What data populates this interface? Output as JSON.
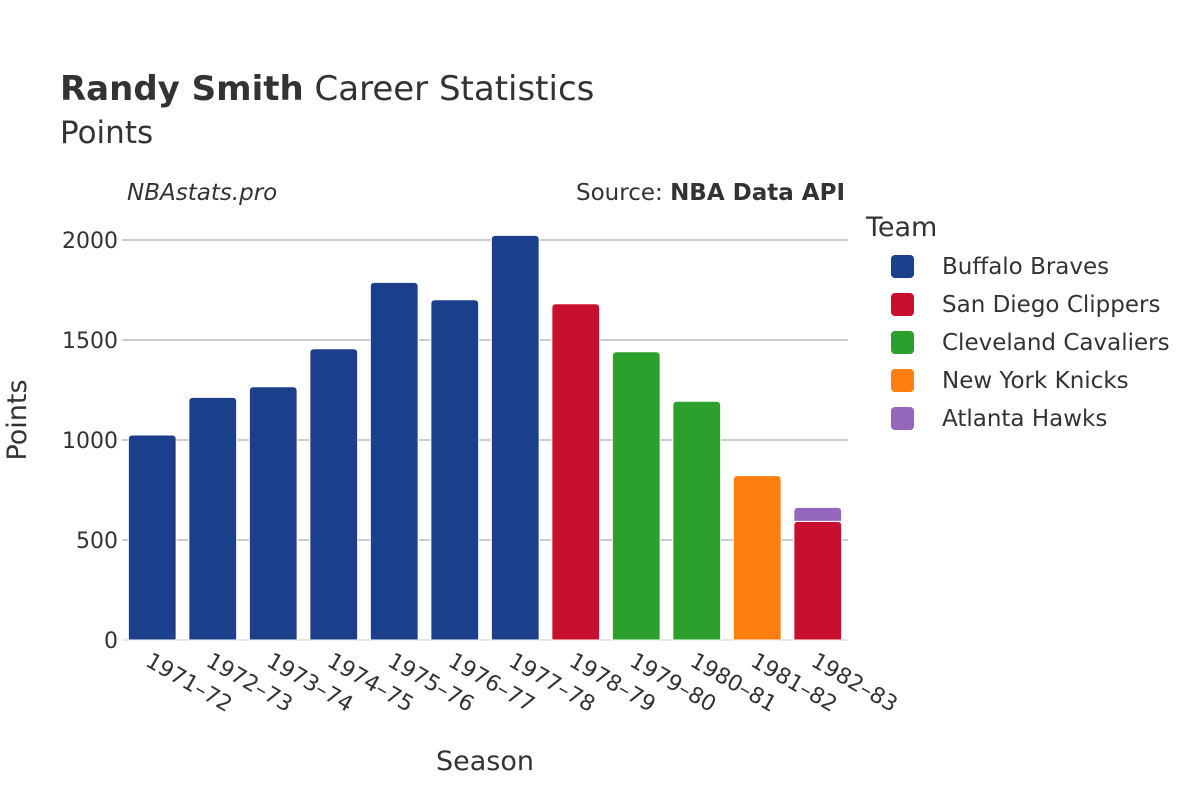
{
  "chart_data": {
    "type": "bar",
    "title": {
      "player": "Randy Smith",
      "rest": "Career Statistics"
    },
    "subtitle": "Points",
    "brand": "NBAstats.pro",
    "source": {
      "label": "Source:",
      "value": "NBA Data API"
    },
    "xlabel": "Season",
    "ylabel": "Points",
    "ylim": [
      0,
      2100
    ],
    "yticks": [
      0,
      500,
      1000,
      1500,
      2000
    ],
    "grid": true,
    "legend": {
      "title": "Team",
      "placement": "right"
    },
    "categories": [
      "1971–72",
      "1972–73",
      "1973–74",
      "1974–75",
      "1975–76",
      "1976–77",
      "1977–78",
      "1978–79",
      "1979–80",
      "1980–81",
      "1981–82",
      "1982–83"
    ],
    "series": [
      {
        "name": "Buffalo Braves",
        "color": "#1b3f8a",
        "values": [
          1025,
          1213,
          1266,
          1456,
          1788,
          1701,
          2023,
          null,
          null,
          null,
          null,
          null
        ]
      },
      {
        "name": "San Diego Clippers",
        "color": "#c8102e",
        "values": [
          null,
          null,
          null,
          null,
          null,
          null,
          null,
          1681,
          null,
          null,
          null,
          593
        ]
      },
      {
        "name": "Cleveland Cavaliers",
        "color": "#2ca02c",
        "values": [
          null,
          null,
          null,
          null,
          null,
          null,
          null,
          null,
          1441,
          1194,
          null,
          null
        ]
      },
      {
        "name": "New York Knicks",
        "color": "#ff7f0e",
        "values": [
          null,
          null,
          null,
          null,
          null,
          null,
          null,
          null,
          null,
          null,
          822,
          null
        ]
      },
      {
        "name": "Atlanta Hawks",
        "color": "#9467bd",
        "values": [
          null,
          null,
          null,
          null,
          null,
          null,
          null,
          null,
          null,
          null,
          null,
          70
        ]
      }
    ]
  }
}
